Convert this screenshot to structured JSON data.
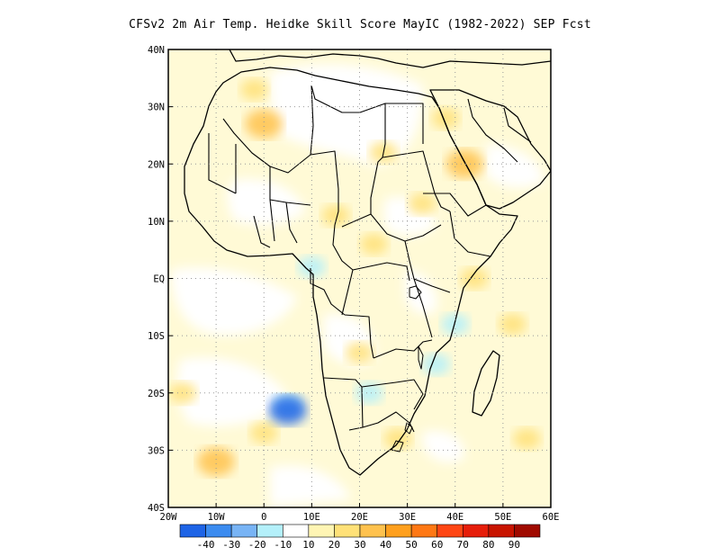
{
  "title": "CFSv2 2m Air Temp. Heidke Skill Score MayIC (1982-2022) SEP Fcst",
  "map": {
    "lon_range": [
      -20,
      60
    ],
    "lat_range": [
      -40,
      40
    ],
    "grid": "dotted",
    "lon_ticks": [
      {
        "value": -20,
        "label": "20W"
      },
      {
        "value": -10,
        "label": "10W"
      },
      {
        "value": 0,
        "label": "0"
      },
      {
        "value": 10,
        "label": "10E"
      },
      {
        "value": 20,
        "label": "20E"
      },
      {
        "value": 30,
        "label": "30E"
      },
      {
        "value": 40,
        "label": "40E"
      },
      {
        "value": 50,
        "label": "50E"
      },
      {
        "value": 60,
        "label": "60E"
      }
    ],
    "lat_ticks": [
      {
        "value": 40,
        "label": "40N"
      },
      {
        "value": 30,
        "label": "30N"
      },
      {
        "value": 20,
        "label": "20N"
      },
      {
        "value": 10,
        "label": "10N"
      },
      {
        "value": 0,
        "label": "EQ"
      },
      {
        "value": -10,
        "label": "10S"
      },
      {
        "value": -20,
        "label": "20S"
      },
      {
        "value": -30,
        "label": "30S"
      },
      {
        "value": -40,
        "label": "40S"
      }
    ]
  },
  "colorbar": {
    "colors": [
      "#1e64e6",
      "#3c8cf0",
      "#78b4f5",
      "#b4f0fa",
      "#ffffff",
      "#fff5b4",
      "#ffe178",
      "#ffc24e",
      "#ffa01e",
      "#ff7814",
      "#ff4614",
      "#e61e0a",
      "#c81400",
      "#a00a00"
    ],
    "labels": [
      "-40",
      "-30",
      "-20",
      "-10",
      "10",
      "20",
      "30",
      "40",
      "50",
      "60",
      "70",
      "80",
      "90"
    ]
  },
  "skill_patches": [
    {
      "lon": 0,
      "lat": 27,
      "value": 30
    },
    {
      "lon": -2,
      "lat": 33,
      "value": 25
    },
    {
      "lon": 42,
      "lat": 20,
      "value": 35
    },
    {
      "lon": 38,
      "lat": 28,
      "value": 20
    },
    {
      "lon": 25,
      "lat": 22,
      "value": 20
    },
    {
      "lon": 15,
      "lat": 11,
      "value": 25
    },
    {
      "lon": 23,
      "lat": 6,
      "value": 25
    },
    {
      "lon": 33,
      "lat": 13,
      "value": 20
    },
    {
      "lon": 44,
      "lat": 0,
      "value": 25
    },
    {
      "lon": 52,
      "lat": -8,
      "value": 20
    },
    {
      "lon": 20,
      "lat": -13,
      "value": 20
    },
    {
      "lon": 28,
      "lat": -28,
      "value": 20
    },
    {
      "lon": -10,
      "lat": -32,
      "value": 30
    },
    {
      "lon": -17,
      "lat": -20,
      "value": 25
    },
    {
      "lon": 55,
      "lat": -28,
      "value": 20
    },
    {
      "lon": 0,
      "lat": -27,
      "value": 20
    },
    {
      "lon": 5,
      "lat": -22,
      "value": -20
    },
    {
      "lon": 5,
      "lat": -23,
      "value": -40
    },
    {
      "lon": 22,
      "lat": -20,
      "value": -20
    },
    {
      "lon": 10,
      "lat": 2,
      "value": -10
    },
    {
      "lon": 40,
      "lat": -8,
      "value": -10
    },
    {
      "lon": 36,
      "lat": -15,
      "value": -10
    }
  ]
}
